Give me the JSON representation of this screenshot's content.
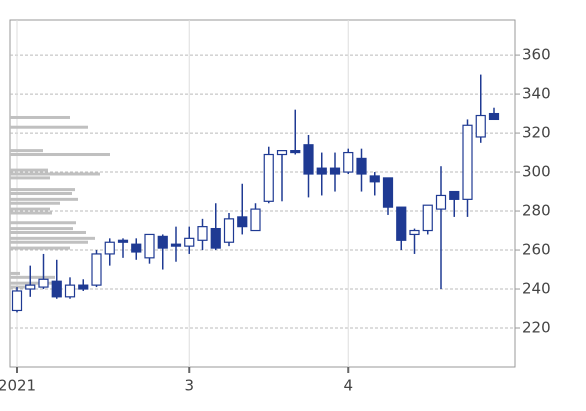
{
  "chart_data": {
    "type": "candlestick",
    "categories": [
      "2021",
      null,
      null,
      null,
      null,
      null,
      null,
      null,
      null,
      null,
      null,
      null,
      null,
      "3",
      null,
      null,
      null,
      null,
      null,
      null,
      null,
      null,
      null,
      null,
      null,
      "4",
      null,
      null,
      null,
      null,
      null,
      null,
      null,
      null,
      null,
      null,
      null
    ],
    "open": [
      229,
      240,
      241,
      244,
      236,
      242,
      242,
      258,
      265,
      263,
      256,
      267,
      263,
      262,
      265,
      271,
      264,
      277,
      270,
      285,
      309,
      311,
      314,
      302,
      302,
      300,
      307,
      298,
      297,
      282,
      268,
      270,
      281,
      290,
      286,
      318,
      330
    ],
    "high": [
      241,
      252,
      258,
      255,
      246,
      245,
      260,
      266,
      266,
      266,
      268,
      268,
      272,
      272,
      276,
      284,
      279,
      294,
      284,
      313,
      311,
      332,
      319,
      310,
      310,
      312,
      312,
      300,
      297,
      282,
      271,
      283,
      303,
      290,
      327,
      350,
      333
    ],
    "low": [
      228,
      236,
      240,
      235,
      235,
      239,
      241,
      252,
      256,
      255,
      253,
      250,
      254,
      258,
      260,
      260,
      262,
      268,
      270,
      284,
      285,
      309,
      287,
      288,
      290,
      299,
      290,
      288,
      278,
      260,
      258,
      268,
      240,
      277,
      277,
      315,
      327
    ],
    "close": [
      239,
      242,
      245,
      236,
      242,
      240,
      258,
      264,
      264,
      259,
      268,
      261,
      262,
      266,
      272,
      261,
      276,
      272,
      281,
      309,
      311,
      310,
      299,
      299,
      299,
      310,
      299,
      295,
      282,
      265,
      270,
      283,
      288,
      286,
      324,
      329,
      327
    ],
    "up_color": "#ffffff",
    "down_color": "#1f3a93",
    "volume_profile": {
      "color": "#c0c0c0",
      "prices": [
        328,
        323,
        311,
        309,
        301,
        299,
        297,
        291,
        289,
        286,
        284,
        281,
        279,
        274,
        271,
        269,
        266,
        264,
        261,
        248,
        246,
        243,
        241
      ],
      "volumes": [
        60,
        78,
        33,
        100,
        38,
        90,
        40,
        65,
        62,
        68,
        50,
        40,
        42,
        66,
        63,
        76,
        85,
        78,
        60,
        10,
        45,
        50,
        20
      ]
    },
    "ylim": [
      200,
      378
    ],
    "yticks": [
      220,
      240,
      260,
      280,
      300,
      320,
      340,
      360
    ],
    "grid": true
  }
}
